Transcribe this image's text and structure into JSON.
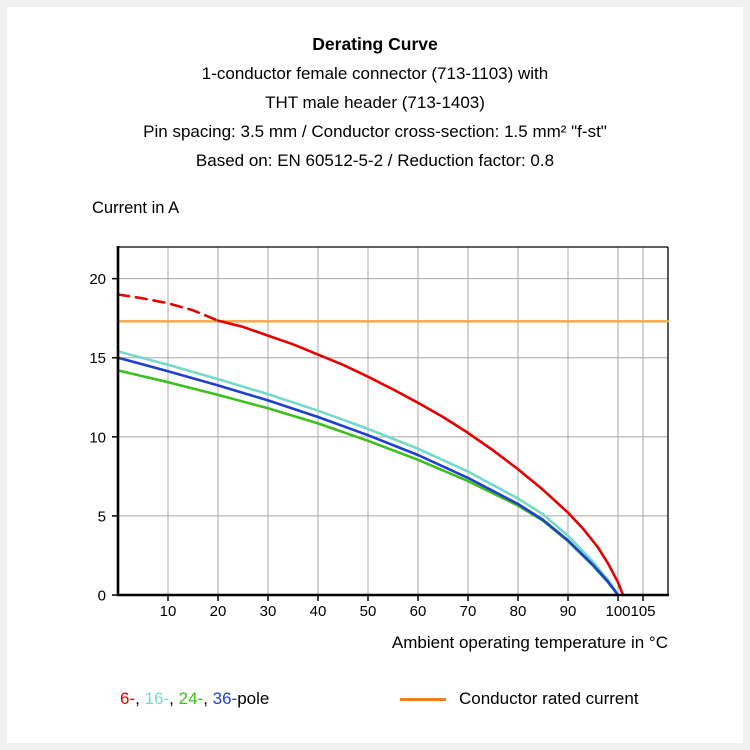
{
  "header": {
    "title": "Derating Curve",
    "subtitle_lines": [
      "1-conductor female connector (713-1103) with",
      "THT male header (713-1403)",
      "Pin spacing: 3.5 mm / Conductor cross-section: 1.5 mm² \"f-st\"",
      "Based on: EN 60512-5-2 / Reduction factor: 0.8"
    ]
  },
  "axes": {
    "y_label": "Current in A",
    "x_label": "Ambient operating temperature in °C"
  },
  "chart_data": {
    "type": "line",
    "title": "Derating Curve",
    "xlabel": "Ambient operating temperature in °C",
    "ylabel": "Current in A",
    "xlim": [
      0,
      110
    ],
    "ylim": [
      0,
      22
    ],
    "x_ticks": [
      10,
      20,
      30,
      40,
      50,
      60,
      70,
      80,
      90,
      100,
      105
    ],
    "y_ticks": [
      0,
      5,
      10,
      15,
      20
    ],
    "grid": true,
    "grid_color": "#a8a8a8",
    "legend_position": "bottom",
    "series": [
      {
        "name": "Conductor rated current",
        "color": "#f5a54a",
        "width": 2.4,
        "dash": false,
        "points": [
          [
            0,
            17.3
          ],
          [
            110,
            17.3
          ]
        ]
      },
      {
        "name": "16-pole",
        "color": "#74d9c9",
        "width": 2.6,
        "dash": false,
        "points": [
          [
            0,
            15.4
          ],
          [
            10,
            14.55
          ],
          [
            20,
            13.65
          ],
          [
            30,
            12.7
          ],
          [
            40,
            11.65
          ],
          [
            50,
            10.5
          ],
          [
            60,
            9.25
          ],
          [
            70,
            7.8
          ],
          [
            80,
            6.1
          ],
          [
            85,
            5.1
          ],
          [
            90,
            3.75
          ],
          [
            95,
            2.1
          ],
          [
            98,
            0.95
          ],
          [
            100,
            0
          ]
        ]
      },
      {
        "name": "24-pole",
        "color": "#3cc01e",
        "width": 2.6,
        "dash": false,
        "points": [
          [
            0,
            14.2
          ],
          [
            10,
            13.45
          ],
          [
            20,
            12.65
          ],
          [
            30,
            11.8
          ],
          [
            40,
            10.85
          ],
          [
            50,
            9.75
          ],
          [
            60,
            8.55
          ],
          [
            70,
            7.2
          ],
          [
            80,
            5.65
          ],
          [
            85,
            4.7
          ],
          [
            90,
            3.4
          ],
          [
            95,
            1.85
          ],
          [
            98,
            0.8
          ],
          [
            100,
            0
          ]
        ]
      },
      {
        "name": "36-pole",
        "color": "#1e3fd0",
        "width": 2.6,
        "dash": false,
        "points": [
          [
            0,
            15.0
          ],
          [
            10,
            14.15
          ],
          [
            20,
            13.25
          ],
          [
            30,
            12.3
          ],
          [
            40,
            11.25
          ],
          [
            50,
            10.1
          ],
          [
            60,
            8.85
          ],
          [
            70,
            7.4
          ],
          [
            80,
            5.75
          ],
          [
            85,
            4.75
          ],
          [
            90,
            3.45
          ],
          [
            95,
            1.9
          ],
          [
            98,
            0.85
          ],
          [
            100,
            0
          ]
        ]
      },
      {
        "name": "6-pole projected",
        "color": "#e60000",
        "width": 2.6,
        "dash": true,
        "points": [
          [
            0,
            19.0
          ],
          [
            5,
            18.75
          ],
          [
            10,
            18.45
          ],
          [
            15,
            18.0
          ],
          [
            20,
            17.35
          ]
        ]
      },
      {
        "name": "6-pole",
        "color": "#e60000",
        "width": 2.6,
        "dash": false,
        "points": [
          [
            20,
            17.35
          ],
          [
            25,
            16.95
          ],
          [
            30,
            16.4
          ],
          [
            35,
            15.85
          ],
          [
            40,
            15.2
          ],
          [
            45,
            14.55
          ],
          [
            50,
            13.8
          ],
          [
            55,
            13.0
          ],
          [
            60,
            12.15
          ],
          [
            65,
            11.25
          ],
          [
            70,
            10.25
          ],
          [
            75,
            9.15
          ],
          [
            80,
            7.95
          ],
          [
            85,
            6.65
          ],
          [
            90,
            5.2
          ],
          [
            93,
            4.2
          ],
          [
            96,
            3.0
          ],
          [
            98,
            2.0
          ],
          [
            100,
            0.8
          ],
          [
            101,
            0
          ]
        ]
      }
    ]
  },
  "legend": {
    "pole_items": [
      {
        "label": "6-",
        "color": "#e60000"
      },
      {
        "label": "16-",
        "color": "#74d9c9"
      },
      {
        "label": "24-",
        "color": "#3cc01e"
      },
      {
        "label": "36-",
        "color": "#1e3fd0"
      }
    ],
    "separator": ", ",
    "pole_suffix": "pole",
    "rated": {
      "label": "Conductor rated current",
      "color": "#ef7f1a"
    }
  }
}
